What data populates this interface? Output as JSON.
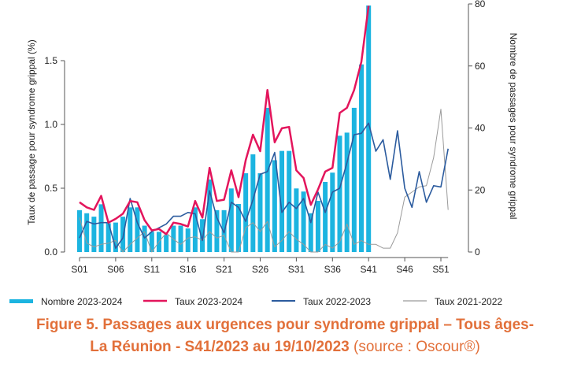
{
  "chart_data": {
    "type": "bar+line",
    "title": "Figure 5. Passages aux urgences pour syndrome grippal – Tous âges-",
    "title_line2": "La Réunion - S41/2023 au 19/10/2023",
    "source": "(source : Oscour®)",
    "ylabel": "Taux de passage pour syndrome grippal (%)",
    "y2label": "Nombre de passages pour syndrome grippal",
    "ylim": [
      0,
      1.95
    ],
    "y2lim": [
      0,
      80
    ],
    "yticks": [
      "0.0",
      "0.5",
      "1.0",
      "1.5"
    ],
    "y2ticks": [
      "0",
      "20",
      "40",
      "60",
      "80"
    ],
    "xticks": [
      "S01",
      "S06",
      "S11",
      "S16",
      "S21",
      "S26",
      "S31",
      "S36",
      "S41",
      "S46",
      "S51"
    ],
    "xtick_weeks": [
      1,
      6,
      11,
      16,
      21,
      26,
      31,
      36,
      41,
      46,
      51
    ],
    "legend": [
      "Nombre 2023-2024",
      "Taux 2023-2024",
      "Taux 2022-2023",
      "Taux 2021-2022"
    ],
    "legend_position": "bottom",
    "colors": {
      "bars": "#1cb4e0",
      "taux_2023": "#e3155c",
      "taux_2022": "#2b5b9e",
      "taux_2021": "#9a9a9a",
      "caption": "#e2703a"
    },
    "series": [
      {
        "name": "Nombre 2023-2024",
        "axis": "right",
        "kind": "bar",
        "values": [
          13.5,
          12.5,
          11.4,
          15.4,
          9.3,
          9.5,
          11.4,
          14.4,
          14.4,
          8.5,
          6.5,
          6.5,
          5.5,
          8.5,
          8.5,
          7.6,
          14.4,
          10.6,
          23.4,
          13.5,
          13.5,
          20.5,
          15.5,
          25.4,
          31.5,
          25.4,
          46.5,
          29.6,
          32.6,
          32.6,
          20.5,
          19.5,
          12.5,
          16.5,
          22.6,
          25.6,
          37.5,
          38.5,
          46.5,
          60.5,
          79.5
        ]
      },
      {
        "name": "Taux 2023-2024",
        "axis": "left",
        "kind": "line",
        "values": [
          0.39,
          0.35,
          0.33,
          0.44,
          0.23,
          0.26,
          0.3,
          0.4,
          0.39,
          0.25,
          0.17,
          0.18,
          0.14,
          0.23,
          0.22,
          0.2,
          0.4,
          0.27,
          0.66,
          0.4,
          0.41,
          0.64,
          0.43,
          0.72,
          0.92,
          0.79,
          1.27,
          0.86,
          0.97,
          0.98,
          0.64,
          0.58,
          0.37,
          0.49,
          0.63,
          0.66,
          1.09,
          1.13,
          1.27,
          1.49,
          1.93
        ]
      },
      {
        "name": "Taux 2022-2023",
        "axis": "left",
        "kind": "line",
        "values": [
          0.11,
          0.24,
          0.22,
          0.23,
          0.23,
          0.03,
          0.11,
          0.42,
          0.23,
          0.11,
          0.16,
          0.19,
          0.22,
          0.28,
          0.28,
          0.31,
          0.3,
          0.09,
          0.48,
          0.27,
          0.15,
          0.39,
          0.35,
          0.24,
          0.41,
          0.61,
          0.63,
          0.78,
          0.31,
          0.39,
          0.34,
          0.42,
          0.23,
          0.47,
          0.31,
          0.47,
          0.5,
          0.7,
          0.92,
          0.93,
          1.01,
          0.79,
          0.88,
          0.57,
          0.95,
          0.5,
          0.35,
          0.63,
          0.39,
          0.52,
          0.51,
          0.81
        ]
      },
      {
        "name": "Taux 2021-2022",
        "axis": "left",
        "kind": "line",
        "values": [
          0.27,
          0.07,
          0.04,
          0.06,
          0.07,
          0.09,
          0.0,
          0.06,
          0.11,
          0.16,
          0.0,
          0.08,
          0.15,
          0.1,
          0.06,
          0.11,
          0.12,
          0.09,
          0.16,
          0.11,
          0.13,
          0.0,
          0.0,
          0.19,
          0.23,
          0.16,
          0.24,
          0.04,
          0.09,
          0.16,
          0.1,
          0.06,
          0.0,
          0.0,
          0.06,
          0.03,
          0.08,
          0.22,
          0.06,
          0.09,
          0.06,
          0.06,
          0.03,
          0.03,
          0.15,
          0.43,
          0.47,
          0.51,
          0.52,
          0.74,
          1.12,
          0.33
        ]
      }
    ]
  }
}
